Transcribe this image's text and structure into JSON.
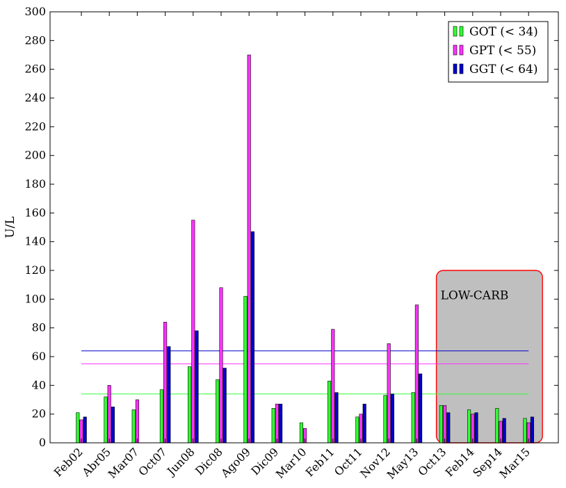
{
  "chart_data": {
    "type": "bar",
    "title": "",
    "xlabel": "",
    "ylabel": "U/L",
    "ylim": [
      0,
      300
    ],
    "yticks": [
      0,
      20,
      40,
      60,
      80,
      100,
      120,
      140,
      160,
      180,
      200,
      220,
      240,
      260,
      280,
      300
    ],
    "grid": false,
    "legend_position": "top-right",
    "categories": [
      "Feb02",
      "Abr05",
      "Mar07",
      "Oct07",
      "Jun08",
      "Dic08",
      "Ago09",
      "Dic09",
      "Mar10",
      "Feb11",
      "Oct11",
      "Nov12",
      "May13",
      "Oct13",
      "Feb14",
      "Sep14",
      "Mar15"
    ],
    "series": [
      {
        "name": "GOT (< 34)",
        "color": "#33ff33",
        "values": [
          21,
          32,
          23,
          37,
          53,
          44,
          102,
          24,
          14,
          43,
          18,
          33,
          35,
          26,
          23,
          24,
          17
        ]
      },
      {
        "name": "GPT (< 55)",
        "color": "#ff33ff",
        "values": [
          16,
          40,
          30,
          84,
          155,
          108,
          270,
          27,
          10,
          79,
          20,
          69,
          96,
          26,
          20,
          15,
          14
        ]
      },
      {
        "name": "GGT (< 64)",
        "color": "#0000cc",
        "values": [
          18,
          25,
          null,
          67,
          78,
          52,
          147,
          27,
          null,
          35,
          27,
          34,
          48,
          21,
          21,
          17,
          18
        ]
      }
    ],
    "reference_lines": [
      {
        "series": "GOT (< 34)",
        "value": 34,
        "color": "#33ff33"
      },
      {
        "series": "GPT (< 55)",
        "value": 55,
        "color": "#ff33ff"
      },
      {
        "series": "GGT (< 64)",
        "value": 64,
        "color": "#0000cc"
      }
    ],
    "annotations": [
      {
        "text": "LOW-CARB",
        "from_category": "Oct13",
        "to_category": "Mar15",
        "fill": "#bfbfbf",
        "border": "#ff0000"
      }
    ]
  }
}
